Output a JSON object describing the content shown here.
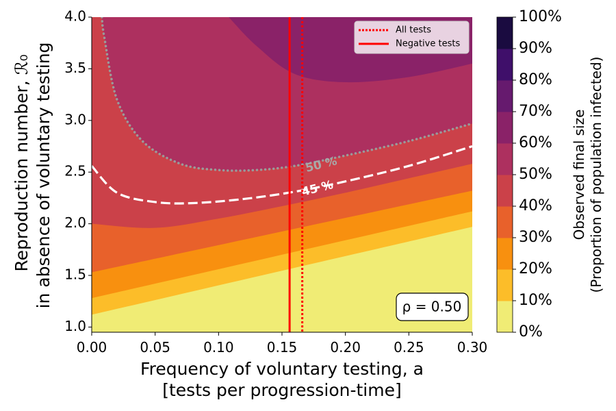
{
  "chart_data": {
    "type": "heatmap",
    "subtype": "filled-contour",
    "xlabel_line1": "Frequency of voluntary testing, a",
    "xlabel_line2": "[tests per progression-time]",
    "ylabel_line1": "Reproduction number, ℛ₀",
    "ylabel_line2": "in absence of voluntary testing",
    "xlim": [
      0.0,
      0.3
    ],
    "ylim": [
      0.95,
      4.0
    ],
    "x_ticks": [
      0.0,
      0.05,
      0.1,
      0.15,
      0.2,
      0.25,
      0.3
    ],
    "x_tick_labels": [
      "0.00",
      "0.05",
      "0.10",
      "0.15",
      "0.20",
      "0.25",
      "0.30"
    ],
    "y_ticks": [
      1.0,
      1.5,
      2.0,
      2.5,
      3.0,
      3.5,
      4.0
    ],
    "y_tick_labels": [
      "1.0",
      "1.5",
      "2.0",
      "2.5",
      "3.0",
      "3.5",
      "4.0"
    ],
    "colorbar": {
      "label_line1": "Observed final size",
      "label_line2": "(Proportion of population infected)",
      "levels": [
        0,
        10,
        20,
        30,
        40,
        50,
        60,
        70,
        80,
        90,
        100
      ],
      "tick_labels": [
        "0%",
        "10%",
        "20%",
        "30%",
        "40%",
        "50%",
        "60%",
        "70%",
        "80%",
        "90%",
        "100%"
      ],
      "colors": [
        "#f0ec75",
        "#fcbd29",
        "#f8900f",
        "#e8612b",
        "#cb4149",
        "#ad305f",
        "#8a2268",
        "#661a6e",
        "#3f0f6a",
        "#1a0b40"
      ]
    },
    "contour_boundaries": [
      {
        "level": 10,
        "x": [
          0.0,
          0.3
        ],
        "y": [
          1.12,
          1.97
        ]
      },
      {
        "level": 20,
        "x": [
          0.0,
          0.3
        ],
        "y": [
          1.28,
          2.12
        ]
      },
      {
        "level": 30,
        "x": [
          0.0,
          0.3
        ],
        "y": [
          1.53,
          2.32
        ]
      },
      {
        "level": 40,
        "x": [
          0.0,
          0.05,
          0.1,
          0.15,
          0.2,
          0.25,
          0.3
        ],
        "y": [
          2.0,
          1.96,
          2.05,
          2.17,
          2.3,
          2.44,
          2.58
        ]
      },
      {
        "level": 50,
        "x": [
          0.008,
          0.01,
          0.02,
          0.04,
          0.07,
          0.1,
          0.13,
          0.16,
          0.2,
          0.25,
          0.3
        ],
        "y": [
          4.0,
          3.8,
          3.2,
          2.8,
          2.58,
          2.52,
          2.52,
          2.56,
          2.66,
          2.8,
          2.97
        ]
      },
      {
        "level": 60,
        "x": [
          0.108,
          0.13,
          0.16,
          0.2,
          0.25,
          0.3
        ],
        "y": [
          4.0,
          3.72,
          3.45,
          3.37,
          3.42,
          3.55
        ]
      }
    ],
    "series": [
      {
        "name": "45 % contour (dashed)",
        "x": [
          0.0,
          0.02,
          0.05,
          0.08,
          0.12,
          0.16,
          0.2,
          0.25,
          0.3
        ],
        "y": [
          2.56,
          2.3,
          2.21,
          2.2,
          2.24,
          2.31,
          2.41,
          2.56,
          2.75
        ]
      },
      {
        "name": "50 % contour (dotted)",
        "x": [
          0.008,
          0.01,
          0.02,
          0.04,
          0.07,
          0.1,
          0.13,
          0.16,
          0.2,
          0.25,
          0.3
        ],
        "y": [
          4.0,
          3.8,
          3.2,
          2.8,
          2.58,
          2.52,
          2.52,
          2.56,
          2.66,
          2.8,
          2.97
        ]
      }
    ],
    "contour_labels": [
      {
        "text": "50 %",
        "x": 0.181,
        "y": 2.57,
        "rotation": -14,
        "color": "#a8a8a8"
      },
      {
        "text": "45 %",
        "x": 0.178,
        "y": 2.34,
        "rotation": -14,
        "color": "#ffffff"
      }
    ],
    "vlines": [
      {
        "x": 0.156,
        "style": "solid",
        "color": "#ff0000"
      },
      {
        "x": 0.166,
        "style": "dotted",
        "color": "#ff0000"
      }
    ],
    "legend": {
      "placement": "top-right",
      "entries": [
        {
          "label": "All tests",
          "style": "dotted",
          "color": "#ff0000"
        },
        {
          "label": "Negative tests",
          "style": "solid",
          "color": "#ff0000"
        }
      ]
    },
    "annotation": "ρ = 0.50"
  }
}
